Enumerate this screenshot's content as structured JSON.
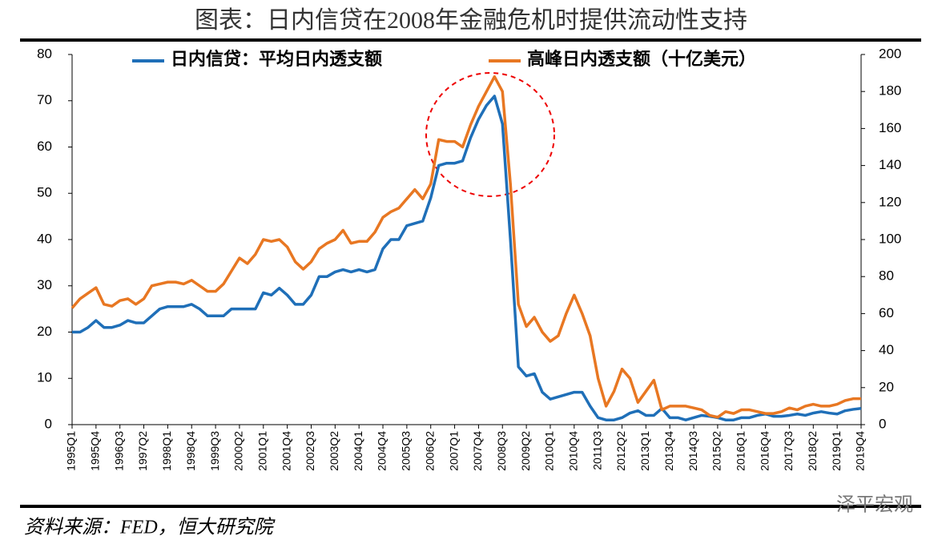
{
  "chart_data": {
    "type": "line",
    "title": "图表：日内信贷在2008年金融危机时提供流动性支持",
    "source": "资料来源：FED，恒大研究院",
    "watermark": "泽平宏观",
    "categories": [
      "1995Q1",
      null,
      null,
      "1995Q4",
      null,
      null,
      "1996Q3",
      null,
      null,
      "1997Q2",
      null,
      null,
      "1998Q1",
      null,
      null,
      "1998Q4",
      null,
      null,
      "1999Q3",
      null,
      null,
      "2000Q2",
      null,
      null,
      "2001Q1",
      null,
      null,
      "2001Q4",
      null,
      null,
      "2002Q3",
      null,
      null,
      "2003Q2",
      null,
      null,
      "2004Q1",
      null,
      null,
      "2004Q4",
      null,
      null,
      "2005Q3",
      null,
      null,
      "2006Q2",
      null,
      null,
      "2007Q1",
      null,
      null,
      "2007Q4",
      null,
      null,
      "2008Q3",
      null,
      null,
      "2009Q2",
      null,
      null,
      "2010Q1",
      null,
      null,
      "2010Q4",
      null,
      null,
      "2011Q3",
      null,
      null,
      "2012Q2",
      null,
      null,
      "2013Q1",
      null,
      null,
      "2013Q4",
      null,
      null,
      "2014Q3",
      null,
      null,
      "2015Q2",
      null,
      null,
      "2016Q1",
      null,
      null,
      "2016Q4",
      null,
      null,
      "2017Q3",
      null,
      null,
      "2018Q2",
      null,
      null,
      "2019Q1",
      null,
      null,
      "2019Q4"
    ],
    "series": [
      {
        "name": "日内信贷：平均日内透支额",
        "color": "#1f6fb8",
        "axis": "y",
        "values": [
          20,
          20,
          21,
          22.5,
          21,
          21,
          21.5,
          22.5,
          22,
          22,
          23.5,
          25,
          25.5,
          25.5,
          25.5,
          26,
          25,
          23.5,
          23.5,
          23.5,
          25,
          25,
          25,
          25,
          28.5,
          28,
          29.5,
          28,
          26,
          26,
          28,
          32,
          32,
          33,
          33.5,
          33,
          33.5,
          33,
          33.5,
          38,
          40,
          40,
          43,
          43.5,
          44,
          49,
          56,
          56.5,
          56.5,
          57,
          62,
          66,
          69,
          71,
          65,
          40,
          12.5,
          10.5,
          11,
          7,
          5.5,
          6,
          6.5,
          7,
          7,
          4,
          1.5,
          1,
          1,
          1.5,
          2.5,
          3,
          2,
          2,
          3.5,
          1.5,
          1.5,
          1,
          1.5,
          2,
          1.8,
          1.5,
          1,
          1,
          1.5,
          1.5,
          2,
          2.3,
          1.8,
          1.8,
          2,
          2.3,
          2,
          2.5,
          2.8,
          2.5,
          2.3,
          3,
          3.3,
          3.5
        ]
      },
      {
        "name": "高峰日内透支额（十亿美元）",
        "color": "#e87722",
        "axis": "y2",
        "values": [
          63,
          68,
          71,
          74,
          65,
          64,
          67,
          68,
          65,
          68,
          75,
          76,
          77,
          77,
          76,
          78,
          75,
          72,
          72,
          76,
          83,
          90,
          87,
          92,
          100,
          99,
          100,
          96,
          88,
          84,
          88,
          95,
          98,
          100,
          105,
          98,
          99,
          99,
          104,
          112,
          115,
          117,
          122,
          127,
          122,
          130,
          154,
          153,
          153,
          150,
          162,
          172,
          180,
          188,
          180,
          130,
          65,
          53,
          58,
          50,
          45,
          48,
          60,
          70,
          60,
          48,
          25,
          10,
          18,
          30,
          25,
          12,
          18,
          24,
          8,
          10,
          10,
          10,
          9,
          8,
          5,
          4,
          7,
          6,
          8,
          8,
          7,
          6,
          6,
          7,
          9,
          8,
          10,
          11,
          10,
          10,
          11,
          13,
          14,
          14
        ]
      }
    ],
    "ylim": [
      0,
      80
    ],
    "yticks": [
      0,
      10,
      20,
      30,
      40,
      50,
      60,
      70,
      80
    ],
    "y2lim": [
      0,
      200
    ],
    "y2ticks": [
      0,
      20,
      40,
      60,
      80,
      100,
      120,
      140,
      160,
      180,
      200
    ],
    "grid": false
  }
}
